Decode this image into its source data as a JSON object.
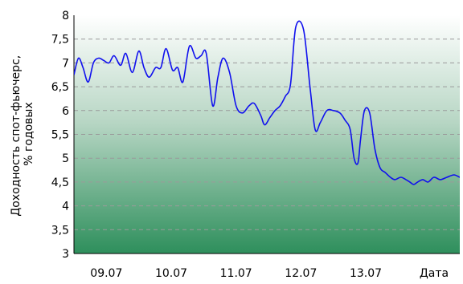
{
  "chart_data": {
    "type": "line",
    "title": "",
    "ylabel_lines": [
      "Доходность спот-фьючерс,",
      "% годовых"
    ],
    "xlabel": "Дата",
    "ylim": [
      3,
      8
    ],
    "yticks": [
      3,
      3.5,
      4,
      4.5,
      5,
      5.5,
      6,
      6.5,
      7,
      7.5,
      8
    ],
    "ytick_labels": [
      "3",
      "3,5",
      "4",
      "4,5",
      "5",
      "5,5",
      "6",
      "6,5",
      "7",
      "7,5",
      "8"
    ],
    "xlim": [
      0,
      5.95
    ],
    "xticks": [
      0.5,
      1.5,
      2.5,
      3.5,
      4.5
    ],
    "xtick_labels": [
      "09.07",
      "10.07",
      "11.07",
      "12.07",
      "13.07"
    ],
    "grid": "horizontal dashed",
    "legend": "none",
    "colors": {
      "line": "#1010ee",
      "gradient_top": "#ffffff",
      "gradient_bottom": "#2e8f5c",
      "grid": "#9a9a9a"
    },
    "series": [
      {
        "x": [
          0.0,
          0.07,
          0.14,
          0.22,
          0.3,
          0.38,
          0.46,
          0.54,
          0.62,
          0.72,
          0.8,
          0.9,
          1.0,
          1.08,
          1.16,
          1.26,
          1.34,
          1.42,
          1.52,
          1.6,
          1.68,
          1.78,
          1.88,
          1.96,
          2.04,
          2.14,
          2.22,
          2.3,
          2.4,
          2.5,
          2.6,
          2.7,
          2.78,
          2.88,
          2.94,
          3.02,
          3.1,
          3.18,
          3.26,
          3.34,
          3.42,
          3.54,
          3.64,
          3.72,
          3.8,
          3.9,
          4.0,
          4.1,
          4.18,
          4.26,
          4.32,
          4.38,
          4.42,
          4.48,
          4.56,
          4.64,
          4.72,
          4.8,
          4.88,
          4.95,
          5.04,
          5.12,
          5.18,
          5.24,
          5.3,
          5.38,
          5.46,
          5.55,
          5.65,
          5.75,
          5.86,
          5.95
        ],
        "y": [
          6.75,
          7.1,
          6.9,
          6.6,
          7.0,
          7.1,
          7.05,
          7.0,
          7.15,
          6.95,
          7.2,
          6.8,
          7.25,
          6.9,
          6.7,
          6.9,
          6.9,
          7.3,
          6.85,
          6.9,
          6.6,
          7.35,
          7.1,
          7.15,
          7.2,
          6.1,
          6.7,
          7.1,
          6.8,
          6.1,
          5.95,
          6.1,
          6.15,
          5.9,
          5.7,
          5.85,
          6.0,
          6.1,
          6.3,
          6.55,
          7.75,
          7.7,
          6.5,
          5.6,
          5.75,
          6.0,
          6.0,
          5.95,
          5.8,
          5.6,
          5.0,
          4.9,
          5.4,
          6.0,
          5.95,
          5.2,
          4.8,
          4.7,
          4.6,
          4.55,
          4.6,
          4.55,
          4.5,
          4.45,
          4.5,
          4.55,
          4.5,
          4.6,
          4.55,
          4.6,
          4.65,
          4.6
        ]
      }
    ]
  }
}
